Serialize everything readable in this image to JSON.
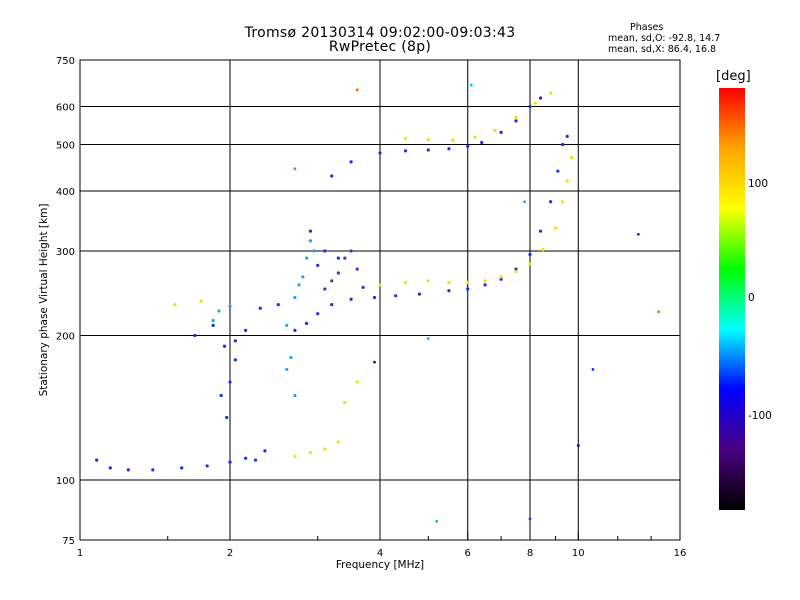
{
  "header": {
    "title_line1": "Tromsø 20130314 09:02:00-09:03:43",
    "title_line2": "RwPretec (8p)"
  },
  "phases": {
    "heading": "Phases",
    "o_line": "mean, sd,O: -92.8, 14.7",
    "x_line": "mean, sd,X:  86.4, 16.8"
  },
  "colorbar": {
    "unit": "[deg]",
    "labels": [
      "100",
      "0",
      "-100"
    ],
    "colors": [
      "#ff0000",
      "#ffa500",
      "#ffff00",
      "#00ff00",
      "#00ffff",
      "#0000ff",
      "#4b0082",
      "#000000"
    ]
  },
  "chart_data": {
    "type": "scatter",
    "title": "Tromsø 20130314 09:02:00-09:03:43",
    "subtitle": "RwPretec (8p)",
    "xlabel": "Frequency [MHz]",
    "ylabel": "Stationary phase Virtual Height [km]",
    "x_scale": "log",
    "y_scale": "log",
    "xlim": [
      1,
      16
    ],
    "ylim": [
      75,
      750
    ],
    "x_ticks": [
      1,
      2,
      4,
      6,
      8,
      10,
      16
    ],
    "y_ticks": [
      75,
      100,
      200,
      300,
      400,
      500,
      600,
      750
    ],
    "x_tick_labels": [
      "1",
      "2",
      "4",
      "6",
      "8",
      "10",
      "16"
    ],
    "y_tick_labels": [
      "75",
      "100",
      "200",
      "300",
      "400",
      "500",
      "600",
      "750"
    ],
    "grid": true,
    "color_scale": "phase in degrees",
    "series": [
      {
        "color": "#1a2ee6",
        "points": [
          [
            1.08,
            110
          ],
          [
            1.15,
            106
          ],
          [
            1.25,
            105
          ],
          [
            1.4,
            105
          ],
          [
            1.6,
            106
          ],
          [
            1.8,
            107
          ],
          [
            2.0,
            109
          ],
          [
            2.15,
            111
          ],
          [
            2.25,
            110
          ],
          [
            2.35,
            115
          ],
          [
            1.7,
            200
          ],
          [
            1.85,
            210
          ],
          [
            1.95,
            190
          ],
          [
            2.05,
            195
          ],
          [
            2.15,
            205
          ],
          [
            2.3,
            228
          ],
          [
            2.5,
            232
          ],
          [
            2.7,
            205
          ],
          [
            2.85,
            212
          ],
          [
            3.0,
            222
          ],
          [
            3.2,
            232
          ],
          [
            3.5,
            238
          ],
          [
            3.9,
            240
          ],
          [
            4.3,
            242
          ],
          [
            4.8,
            244
          ],
          [
            5.5,
            248
          ],
          [
            6.0,
            250
          ],
          [
            6.5,
            255
          ],
          [
            7.0,
            262
          ],
          [
            7.5,
            275
          ],
          [
            8.0,
            295
          ],
          [
            8.4,
            330
          ],
          [
            8.8,
            380
          ],
          [
            9.1,
            440
          ],
          [
            9.3,
            500
          ],
          [
            9.5,
            520
          ],
          [
            3.2,
            430
          ],
          [
            3.5,
            460
          ],
          [
            4.0,
            480
          ],
          [
            4.5,
            485
          ],
          [
            5.0,
            487
          ],
          [
            5.5,
            490
          ],
          [
            6.0,
            496
          ],
          [
            6.4,
            505
          ],
          [
            7.0,
            530
          ],
          [
            7.5,
            560
          ],
          [
            8.0,
            600
          ],
          [
            8.4,
            625
          ],
          [
            1.92,
            150
          ],
          [
            1.97,
            135
          ],
          [
            2.0,
            160
          ],
          [
            2.05,
            178
          ],
          [
            2.9,
            330
          ],
          [
            3.0,
            280
          ],
          [
            3.1,
            300
          ],
          [
            3.3,
            290
          ]
        ]
      },
      {
        "color": "#e6e600",
        "points": [
          [
            4.0,
            255
          ],
          [
            4.5,
            258
          ],
          [
            5.0,
            260
          ],
          [
            5.5,
            258
          ],
          [
            6.0,
            258
          ],
          [
            6.5,
            260
          ],
          [
            7.0,
            265
          ],
          [
            7.5,
            272
          ],
          [
            8.0,
            282
          ],
          [
            8.5,
            302
          ],
          [
            9.0,
            335
          ],
          [
            9.3,
            380
          ],
          [
            9.5,
            420
          ],
          [
            9.7,
            470
          ],
          [
            4.5,
            515
          ],
          [
            5.0,
            512
          ],
          [
            5.6,
            510
          ],
          [
            6.2,
            518
          ],
          [
            6.8,
            535
          ],
          [
            7.5,
            570
          ],
          [
            8.2,
            610
          ],
          [
            8.8,
            640
          ],
          [
            2.7,
            112
          ],
          [
            2.9,
            114
          ],
          [
            3.1,
            116
          ],
          [
            3.3,
            120
          ],
          [
            3.4,
            145
          ],
          [
            3.6,
            160
          ],
          [
            1.55,
            232
          ],
          [
            1.75,
            236
          ]
        ]
      },
      {
        "color": "#22a5ee",
        "points": [
          [
            1.85,
            215
          ],
          [
            1.9,
            225
          ],
          [
            2.0,
            230
          ],
          [
            2.6,
            210
          ],
          [
            2.7,
            240
          ],
          [
            2.75,
            255
          ],
          [
            2.8,
            265
          ],
          [
            2.85,
            290
          ],
          [
            2.9,
            315
          ],
          [
            2.95,
            300
          ],
          [
            2.7,
            150
          ],
          [
            2.65,
            180
          ],
          [
            2.6,
            170
          ]
        ]
      },
      {
        "color": "#6a1fb5",
        "points": [
          [
            3.1,
            250
          ],
          [
            3.2,
            260
          ],
          [
            3.3,
            270
          ],
          [
            3.4,
            290
          ],
          [
            3.5,
            300
          ],
          [
            3.6,
            275
          ],
          [
            3.7,
            252
          ]
        ]
      }
    ],
    "outliers": [
      {
        "x": 3.6,
        "y": 650,
        "color": "#ff6600"
      },
      {
        "x": 6.1,
        "y": 665,
        "color": "#00d0e0"
      },
      {
        "x": 5.2,
        "y": 82,
        "color": "#22a5ee"
      },
      {
        "x": 8.0,
        "y": 83,
        "color": "#1a2ee6"
      },
      {
        "x": 10.0,
        "y": 118,
        "color": "#000080"
      },
      {
        "x": 10.7,
        "y": 170,
        "color": "#1a2ee6"
      },
      {
        "x": 14.5,
        "y": 224,
        "color": "#ff6600"
      },
      {
        "x": 13.2,
        "y": 325,
        "color": "#1a2ee6"
      },
      {
        "x": 5.0,
        "y": 197,
        "color": "#22a5ee"
      },
      {
        "x": 3.9,
        "y": 176,
        "color": "#4b0082"
      },
      {
        "x": 2.7,
        "y": 445,
        "color": "#22a5ee"
      },
      {
        "x": 7.8,
        "y": 380,
        "color": "#22a5ee"
      }
    ]
  }
}
